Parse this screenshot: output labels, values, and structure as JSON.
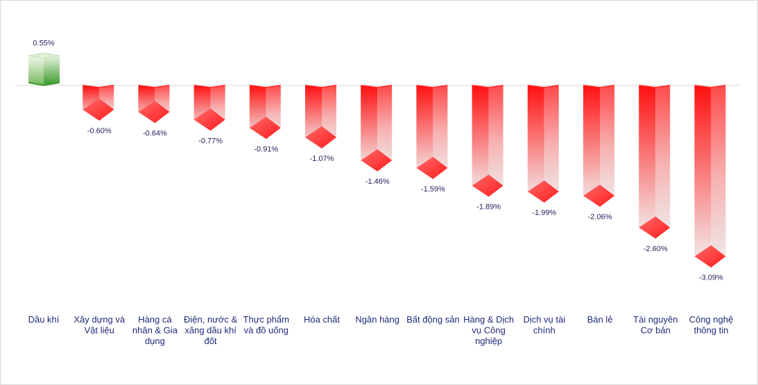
{
  "chart_data": {
    "type": "bar",
    "categories": [
      [
        "Dầu khí"
      ],
      [
        "Xây dựng và",
        "Vật liệu"
      ],
      [
        "Hàng cá",
        "nhân & Gia",
        "dụng"
      ],
      [
        "Điện, nước &",
        "xăng dầu khí",
        "đốt"
      ],
      [
        "Thực phẩm",
        "và đồ uống"
      ],
      [
        "Hóa chất"
      ],
      [
        "Ngân hàng"
      ],
      [
        "Bất động sản"
      ],
      [
        "Hàng & Dịch",
        "vụ Công",
        "nghiệp"
      ],
      [
        "Dịch vụ tài",
        "chính"
      ],
      [
        "Bán lẻ"
      ],
      [
        "Tài nguyên",
        "Cơ bản"
      ],
      [
        "Công nghệ",
        "thông tin"
      ]
    ],
    "values": [
      0.55,
      -0.6,
      -0.64,
      -0.77,
      -0.91,
      -1.07,
      -1.46,
      -1.59,
      -1.89,
      -1.99,
      -2.06,
      -2.6,
      -3.09
    ],
    "value_labels": [
      "0.55%",
      "-0.60%",
      "-0.64%",
      "-0.77%",
      "-0.91%",
      "-1.07%",
      "-1.46%",
      "-1.59%",
      "-1.89%",
      "-1.99%",
      "-2.06%",
      "-2.60%",
      "-3.09%"
    ],
    "ylim": [
      -3.09,
      0.55
    ],
    "grid": false,
    "legend": "none",
    "colors": {
      "positive": "#3a9a2a",
      "positive_light": "#e9f5e2",
      "negative": "#ff1010",
      "negative_light": "#f2f2f2",
      "baseline": "#d9d9d9",
      "label": "#1f2a78"
    }
  }
}
